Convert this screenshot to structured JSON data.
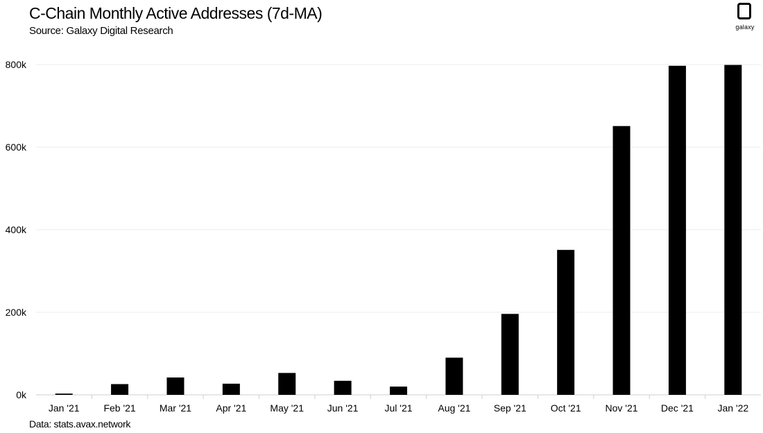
{
  "header": {
    "title": "C-Chain Monthly Active Addresses (7d-MA)",
    "subtitle": "Source: Galaxy Digital Research"
  },
  "logo": {
    "text": "galaxy"
  },
  "footer": {
    "note": "Data: stats.avax.network"
  },
  "chart_data": {
    "type": "bar",
    "categories": [
      "Jan '21",
      "Feb '21",
      "Mar '21",
      "Apr '21",
      "May '21",
      "Jun '21",
      "Jul '21",
      "Aug '21",
      "Sep '21",
      "Oct '21",
      "Nov '21",
      "Dec '21",
      "Jan '22"
    ],
    "values": [
      3000,
      26000,
      42000,
      27000,
      53000,
      34000,
      20000,
      90000,
      196000,
      351000,
      651000,
      797000,
      799000
    ],
    "ylim": [
      0,
      800000
    ],
    "yticks": [
      0,
      200000,
      400000,
      600000,
      800000
    ],
    "ytick_labels": [
      "0k",
      "200k",
      "400k",
      "600k",
      "800k"
    ],
    "grid": true,
    "bar_color": "#000000",
    "grid_color": "#ebebeb"
  }
}
